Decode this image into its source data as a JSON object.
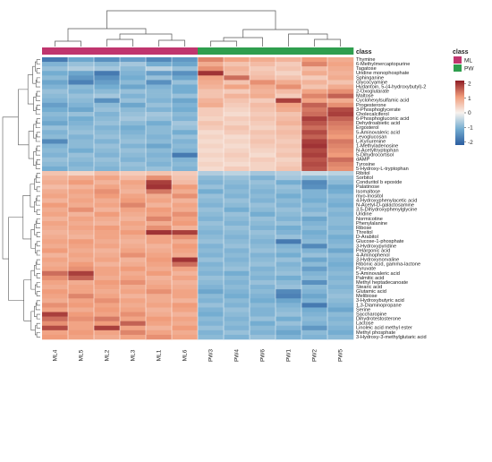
{
  "chart_data": {
    "type": "heatmap",
    "annotation": {
      "title": "class",
      "legend_title": "class",
      "groups": [
        {
          "name": "ML",
          "color": "#c0356e"
        },
        {
          "name": "PW",
          "color": "#2f9e4e"
        }
      ],
      "column_groups": [
        "ML",
        "ML",
        "ML",
        "ML",
        "ML",
        "ML",
        "PW",
        "PW",
        "PW",
        "PW",
        "PW",
        "PW"
      ]
    },
    "columns": [
      "ML4",
      "ML5",
      "ML2",
      "ML3",
      "ML1",
      "ML6",
      "PW3",
      "PW4",
      "PW6",
      "PW1",
      "PW2",
      "PW5"
    ],
    "rows": [
      "Thymine",
      "6-Methylmercaptopurine",
      "Tagatose",
      "Uridine monophosphate",
      "Sphinganine",
      "Glycocyamine",
      "Hydantoin, 5-(4-hydroxybutyl)-2",
      "2-Oxoglutarate",
      "Maltose",
      "Cyclohexylsulfamic acid",
      "Progesterone",
      "3-Phosphoglycerate",
      "Cholecalciferol",
      "6-Phosphogluconic acid",
      "Dehydroabietic acid",
      "Ergosterol",
      "5-Aminovaleric acid",
      "Levoglucosan",
      "L-Kynurenine",
      "1-Methyladenosine",
      "N-Acetyltryptophan",
      "5-Dihydrocortisol",
      "dAMP",
      "Tyrosine",
      "5-Hydroxy-L-tryptophan",
      "Ribitol",
      "Sorbitol",
      "Conduritol b epoxide",
      "Palatinose",
      "Isomaltose",
      "myo-Inositol",
      "4-Hydroxyphenylacetic acid",
      "N-Acetyl-D-galactosamine",
      "3,5-Dihydroxyphenylglycine",
      "Uridine",
      "Normicotine",
      "Phenylalanine",
      "Ribose",
      "Threitol",
      "D-Arabitol",
      "Glucose-1-phosphate",
      "3-Hydroxypyridine",
      "Pelargonic acid",
      "4-Aminophenol",
      "3-Hydroxynorvaline",
      "Ribonic acid, gamma-lactone",
      "Pyruvate",
      "5-Aminovaleric acid",
      "Palmitic acid",
      "Methyl heptadecanoate",
      "Stearic acid",
      "Glutamic acid",
      "Melibiose",
      "3-Hydroxybutyric acid",
      "1,3-Diaminopropane",
      "Serine",
      "Saccharopine",
      "Dihydrotestosterone",
      "Lactose",
      "Linoleic acid methyl ester",
      "Methyl phosphate",
      "3-Hydroxy-3-methylglutaric acid"
    ],
    "values": [
      [
        -1.8,
        -1.2,
        -1.5,
        -1.3,
        -1.6,
        -1.4,
        1.3,
        1.0,
        0.9,
        0.8,
        1.1,
        0.9
      ],
      [
        -1.0,
        -0.8,
        -0.9,
        -0.7,
        -1.1,
        -1.2,
        0.9,
        0.6,
        0.7,
        0.5,
        1.3,
        1.0
      ],
      [
        -0.8,
        -0.6,
        -0.7,
        -0.9,
        -0.5,
        -0.8,
        1.2,
        0.8,
        0.5,
        0.6,
        0.7,
        0.9
      ],
      [
        -1.1,
        -1.2,
        -1.8,
        -1.0,
        -1.3,
        -1.5,
        2.0,
        0.7,
        0.6,
        0.4,
        0.9,
        0.8
      ],
      [
        -0.9,
        -1.4,
        -1.5,
        -1.1,
        -0.8,
        -1.2,
        1.0,
        1.5,
        0.7,
        0.6,
        0.5,
        0.9
      ],
      [
        -1.2,
        -1.7,
        -1.3,
        -0.9,
        -1.5,
        -0.8,
        0.9,
        0.6,
        1.2,
        0.9,
        0.8,
        0.6
      ],
      [
        -1.0,
        -0.9,
        -1.1,
        -1.2,
        -1.0,
        -1.1,
        0.8,
        1.0,
        0.9,
        1.2,
        0.6,
        0.9
      ],
      [
        -0.8,
        -1.0,
        -0.9,
        -0.8,
        -0.9,
        -1.1,
        0.6,
        0.5,
        0.8,
        0.7,
        1.0,
        1.2
      ],
      [
        -0.9,
        -0.8,
        -0.7,
        -1.0,
        -0.9,
        -0.8,
        0.6,
        0.8,
        0.9,
        0.5,
        1.3,
        1.6
      ],
      [
        -1.0,
        -0.9,
        -1.5,
        -0.8,
        -1.0,
        -1.2,
        0.8,
        0.6,
        0.5,
        1.9,
        1.0,
        0.9
      ],
      [
        -1.3,
        -1.0,
        -0.9,
        -1.2,
        -0.8,
        -1.0,
        0.9,
        0.5,
        0.7,
        1.0,
        1.6,
        1.2
      ],
      [
        -1.1,
        -1.2,
        -0.8,
        -0.9,
        -1.0,
        -1.1,
        0.5,
        0.4,
        0.6,
        0.9,
        1.4,
        1.8
      ],
      [
        -0.9,
        -0.8,
        -1.0,
        -0.8,
        -0.7,
        -0.9,
        0.5,
        0.3,
        0.5,
        0.6,
        1.5,
        1.9
      ],
      [
        -1.0,
        -1.1,
        -0.9,
        -0.7,
        -0.8,
        -1.0,
        0.4,
        0.5,
        0.6,
        0.7,
        1.9,
        1.6
      ],
      [
        -1.2,
        -1.0,
        -0.8,
        -0.9,
        -1.1,
        -0.7,
        0.6,
        0.4,
        0.5,
        0.8,
        1.7,
        1.4
      ],
      [
        -0.8,
        -0.9,
        -1.0,
        -1.1,
        -0.9,
        -0.8,
        0.5,
        0.6,
        0.4,
        0.6,
        1.5,
        1.3
      ],
      [
        -1.0,
        -0.8,
        -0.9,
        -1.0,
        -0.9,
        -1.1,
        0.3,
        0.5,
        0.6,
        0.7,
        1.8,
        1.2
      ],
      [
        -0.9,
        -1.0,
        -0.8,
        -0.9,
        -1.0,
        -0.8,
        0.4,
        0.3,
        0.5,
        0.6,
        1.6,
        1.1
      ],
      [
        -1.6,
        -0.9,
        -1.0,
        -0.8,
        -0.9,
        -1.0,
        0.3,
        0.4,
        0.6,
        0.5,
        1.9,
        1.4
      ],
      [
        -1.0,
        -0.9,
        -0.8,
        -1.0,
        -1.2,
        -0.9,
        0.4,
        0.3,
        0.5,
        0.6,
        2.0,
        1.3
      ],
      [
        -0.9,
        -1.1,
        -0.9,
        -0.8,
        -0.9,
        -1.0,
        0.3,
        0.4,
        0.4,
        0.5,
        1.8,
        1.2
      ],
      [
        -1.0,
        -0.8,
        -1.0,
        -0.9,
        -1.0,
        -1.8,
        0.4,
        0.5,
        0.3,
        0.6,
        1.9,
        1.1
      ],
      [
        -0.8,
        -0.9,
        -0.8,
        -1.0,
        -0.9,
        -1.0,
        0.3,
        0.4,
        0.5,
        0.4,
        1.7,
        1.5
      ],
      [
        -0.9,
        -1.0,
        -0.9,
        -0.8,
        -1.0,
        -0.9,
        0.4,
        0.3,
        0.4,
        0.5,
        1.8,
        1.3
      ],
      [
        -1.1,
        -0.9,
        -1.0,
        -0.9,
        -0.8,
        -1.0,
        0.3,
        0.5,
        0.4,
        0.6,
        1.7,
        1.2
      ],
      [
        0.6,
        0.4,
        0.7,
        0.5,
        0.6,
        0.5,
        -0.6,
        -0.5,
        -0.7,
        -0.6,
        -0.4,
        -0.5
      ],
      [
        0.8,
        0.9,
        1.0,
        0.7,
        1.2,
        0.6,
        -0.9,
        -0.8,
        -1.0,
        -0.7,
        -0.9,
        -0.8
      ],
      [
        0.9,
        1.1,
        0.8,
        1.0,
        1.9,
        0.7,
        -1.0,
        -0.9,
        -0.8,
        -1.1,
        -1.6,
        -0.9
      ],
      [
        0.7,
        0.8,
        1.0,
        0.9,
        2.0,
        1.1,
        -0.8,
        -1.0,
        -0.9,
        -0.8,
        -1.5,
        -1.2
      ],
      [
        0.9,
        1.0,
        1.2,
        0.8,
        1.4,
        0.9,
        -1.1,
        -0.9,
        -1.0,
        -0.9,
        -1.0,
        -1.1
      ],
      [
        1.0,
        0.9,
        1.1,
        1.0,
        0.9,
        1.2,
        -0.8,
        -1.0,
        -0.9,
        -1.1,
        -1.0,
        -0.9
      ],
      [
        0.8,
        1.0,
        0.9,
        1.1,
        1.0,
        0.8,
        -0.9,
        -0.8,
        -1.0,
        -0.9,
        -1.1,
        -1.0
      ],
      [
        1.1,
        0.9,
        1.0,
        1.3,
        0.8,
        1.0,
        -1.0,
        -0.9,
        -0.8,
        -1.0,
        -0.9,
        -1.1
      ],
      [
        0.9,
        1.2,
        0.8,
        1.0,
        1.1,
        0.9,
        -0.8,
        -1.1,
        -0.9,
        -0.8,
        -1.0,
        -0.9
      ],
      [
        1.0,
        0.8,
        1.1,
        0.9,
        1.0,
        1.2,
        -0.9,
        -0.8,
        -1.1,
        -0.9,
        -0.8,
        -1.0
      ],
      [
        0.8,
        1.0,
        0.9,
        0.8,
        1.3,
        1.0,
        -1.0,
        -0.9,
        -0.8,
        -1.0,
        -1.2,
        -0.9
      ],
      [
        1.0,
        0.9,
        0.8,
        1.0,
        0.9,
        1.1,
        -0.8,
        -1.0,
        -0.9,
        -0.8,
        -1.0,
        -0.9
      ],
      [
        0.9,
        1.0,
        1.1,
        0.9,
        1.2,
        0.8,
        -0.9,
        -0.8,
        -1.0,
        -1.1,
        -0.9,
        -1.0
      ],
      [
        0.8,
        0.9,
        1.0,
        1.1,
        2.0,
        1.9,
        -1.0,
        -0.9,
        -0.8,
        -1.0,
        -1.1,
        -0.9
      ],
      [
        0.9,
        0.8,
        1.0,
        0.9,
        1.0,
        1.2,
        -0.9,
        -1.0,
        -0.9,
        -0.8,
        -1.0,
        -1.1
      ],
      [
        1.0,
        1.1,
        0.9,
        0.8,
        1.0,
        0.9,
        -0.8,
        -0.9,
        -1.0,
        -1.8,
        -0.9,
        -1.0
      ],
      [
        0.9,
        1.0,
        1.0,
        0.9,
        0.8,
        1.1,
        -1.0,
        -0.8,
        -0.9,
        -1.0,
        -1.6,
        -0.9
      ],
      [
        1.1,
        0.9,
        0.8,
        1.0,
        0.9,
        1.0,
        -0.9,
        -1.0,
        -0.8,
        -0.9,
        -1.0,
        -1.2
      ],
      [
        0.8,
        1.0,
        0.9,
        1.2,
        1.0,
        0.9,
        -1.0,
        -0.9,
        -1.0,
        -1.1,
        -0.8,
        -0.9
      ],
      [
        1.0,
        0.9,
        1.0,
        0.8,
        1.1,
        2.0,
        -0.8,
        -1.0,
        -0.9,
        -0.8,
        -1.2,
        -1.0
      ],
      [
        0.9,
        1.1,
        0.8,
        0.9,
        1.0,
        1.5,
        -1.0,
        -0.9,
        -0.8,
        -1.0,
        -0.9,
        -1.1
      ],
      [
        1.0,
        1.2,
        1.0,
        1.1,
        0.9,
        1.0,
        -0.9,
        -0.8,
        -1.0,
        -0.9,
        -1.3,
        -1.0
      ],
      [
        1.5,
        1.9,
        1.0,
        0.9,
        1.1,
        0.8,
        -1.0,
        -1.1,
        -0.9,
        -0.8,
        -1.0,
        -0.9
      ],
      [
        1.2,
        1.6,
        0.9,
        1.0,
        0.8,
        1.0,
        -0.8,
        -0.9,
        -1.0,
        -1.1,
        -0.9,
        -1.0
      ],
      [
        1.0,
        0.9,
        1.1,
        1.2,
        0.9,
        0.8,
        -0.9,
        -1.0,
        -0.8,
        -0.9,
        -1.5,
        -0.9
      ],
      [
        0.9,
        1.0,
        1.0,
        0.9,
        1.0,
        0.9,
        -1.0,
        -0.9,
        -1.0,
        -0.8,
        -0.9,
        -1.0
      ],
      [
        1.1,
        1.0,
        0.9,
        1.0,
        1.2,
        1.0,
        -1.2,
        -1.0,
        -0.9,
        -1.6,
        -1.0,
        -0.9
      ],
      [
        1.0,
        1.3,
        1.0,
        0.8,
        0.9,
        1.0,
        -0.9,
        -1.1,
        -1.0,
        -1.7,
        -1.2,
        -0.8
      ],
      [
        0.9,
        1.0,
        1.2,
        1.0,
        0.9,
        0.8,
        -1.0,
        -0.9,
        -1.1,
        -1.2,
        -1.0,
        -0.9
      ],
      [
        1.2,
        1.1,
        1.0,
        0.9,
        1.0,
        1.1,
        -0.8,
        -1.0,
        -0.9,
        -1.0,
        -1.8,
        -1.0
      ],
      [
        1.0,
        0.9,
        1.1,
        1.0,
        0.8,
        1.0,
        -1.0,
        -0.8,
        -1.0,
        -0.9,
        -1.1,
        -1.2
      ],
      [
        1.9,
        1.1,
        1.0,
        1.2,
        0.9,
        0.8,
        -1.1,
        -0.9,
        -1.0,
        -0.8,
        -1.0,
        -0.9
      ],
      [
        1.5,
        1.2,
        1.4,
        1.0,
        1.1,
        1.0,
        -0.9,
        -1.0,
        -0.8,
        -1.1,
        -0.9,
        -1.0
      ],
      [
        1.2,
        1.0,
        1.1,
        1.6,
        1.0,
        0.9,
        -1.0,
        -0.9,
        -1.1,
        -0.8,
        -1.0,
        -0.9
      ],
      [
        1.8,
        1.0,
        1.9,
        1.0,
        0.8,
        1.1,
        -0.8,
        -1.0,
        -0.9,
        -1.0,
        -1.4,
        -1.0
      ],
      [
        1.0,
        1.1,
        1.0,
        1.3,
        1.0,
        0.9,
        -1.0,
        -0.8,
        -1.0,
        -1.2,
        -0.9,
        -1.1
      ],
      [
        1.1,
        1.0,
        0.9,
        1.0,
        1.2,
        1.0,
        -0.9,
        -1.0,
        -0.8,
        -1.0,
        -1.0,
        -0.9
      ]
    ],
    "color_scale": {
      "min": -2.2,
      "max": 2.2,
      "ticks": [
        -2,
        -1,
        0,
        1,
        2
      ],
      "colors": [
        "#2b5d9f",
        "#74add1",
        "#f7f2ee",
        "#f09c7b",
        "#8e1c25"
      ]
    }
  }
}
